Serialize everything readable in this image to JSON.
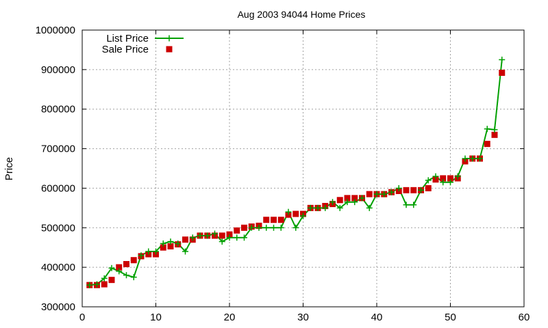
{
  "chart_data": {
    "type": "line",
    "title": "Aug 2003 94044 Home Prices",
    "xlabel": "",
    "ylabel": "Price",
    "xlim": [
      0,
      60
    ],
    "ylim": [
      300000,
      1000000
    ],
    "xticks": [
      0,
      10,
      20,
      30,
      40,
      50,
      60
    ],
    "yticks": [
      300000,
      400000,
      500000,
      600000,
      700000,
      800000,
      900000,
      1000000
    ],
    "grid": true,
    "legend_position": "top-left",
    "series": [
      {
        "name": "List Price",
        "style": "line-with-plus-markers",
        "color": "#00a000",
        "x": [
          1,
          2,
          3,
          4,
          5,
          6,
          7,
          8,
          9,
          10,
          11,
          12,
          13,
          14,
          15,
          16,
          17,
          18,
          19,
          20,
          21,
          22,
          23,
          24,
          25,
          26,
          27,
          28,
          29,
          30,
          31,
          32,
          33,
          34,
          35,
          36,
          37,
          38,
          39,
          40,
          41,
          42,
          43,
          44,
          45,
          46,
          47,
          48,
          49,
          50,
          51,
          52,
          53,
          54,
          55,
          56,
          57
        ],
        "y": [
          355000,
          357000,
          372000,
          398000,
          390000,
          380000,
          375000,
          430000,
          440000,
          440000,
          460000,
          465000,
          460000,
          440000,
          475000,
          480000,
          480000,
          485000,
          465000,
          475000,
          475000,
          475000,
          500000,
          500000,
          500000,
          500000,
          500000,
          540000,
          500000,
          530000,
          550000,
          550000,
          550000,
          565000,
          550000,
          565000,
          565000,
          575000,
          550000,
          585000,
          585000,
          590000,
          600000,
          558000,
          558000,
          595000,
          620000,
          630000,
          615000,
          615000,
          630000,
          675000,
          675000,
          675000,
          750000,
          748000,
          925000
        ]
      },
      {
        "name": "Sale Price",
        "style": "square-markers",
        "color": "#cc0000",
        "x": [
          1,
          2,
          3,
          4,
          5,
          6,
          7,
          8,
          9,
          10,
          11,
          12,
          13,
          14,
          15,
          16,
          17,
          18,
          19,
          20,
          21,
          22,
          23,
          24,
          25,
          26,
          27,
          28,
          29,
          30,
          31,
          32,
          33,
          34,
          35,
          36,
          37,
          38,
          39,
          40,
          41,
          42,
          43,
          44,
          45,
          46,
          47,
          48,
          49,
          50,
          51,
          52,
          53,
          54,
          55,
          56,
          57
        ],
        "y": [
          355000,
          355000,
          357000,
          368000,
          400000,
          408000,
          418000,
          428000,
          433000,
          433000,
          450000,
          453000,
          458000,
          470000,
          470000,
          480000,
          480000,
          480000,
          480000,
          483000,
          493000,
          500000,
          503000,
          505000,
          520000,
          520000,
          520000,
          533000,
          535000,
          535000,
          550000,
          550000,
          555000,
          560000,
          570000,
          575000,
          575000,
          575000,
          585000,
          585000,
          585000,
          590000,
          593000,
          595000,
          595000,
          595000,
          600000,
          622000,
          625000,
          625000,
          625000,
          668000,
          675000,
          675000,
          712000,
          735000,
          892000
        ]
      }
    ]
  }
}
